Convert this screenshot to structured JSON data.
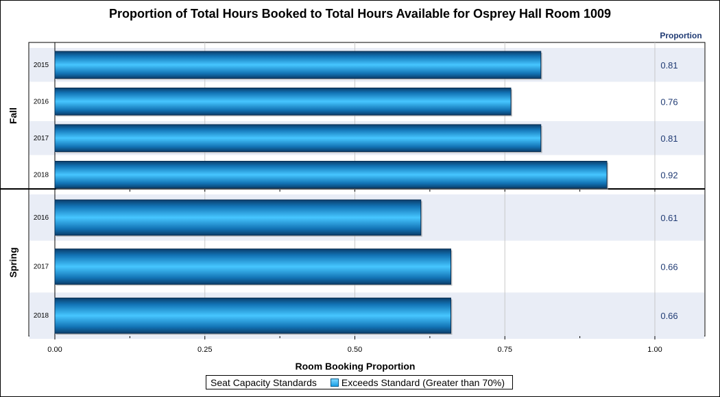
{
  "chart_data": {
    "type": "bar",
    "orientation": "horizontal",
    "title": "Proportion of Total Hours Booked to Total Hours Available for Osprey Hall Room 1009",
    "xlabel": "Room Booking Proportion",
    "value_column_header": "Proportion",
    "xlim": [
      0,
      1.125
    ],
    "x_ticks": [
      "0.00",
      "0.25",
      "0.50",
      "0.75",
      "1.00"
    ],
    "grid": true,
    "groups": [
      {
        "name": "Fall",
        "categories": [
          "2015",
          "2016",
          "2017",
          "2018"
        ],
        "values": [
          0.81,
          0.76,
          0.81,
          0.92
        ],
        "value_labels": [
          "0.81",
          "0.76",
          "0.81",
          "0.92"
        ]
      },
      {
        "name": "Spring",
        "categories": [
          "2016",
          "2017",
          "2018"
        ],
        "values": [
          0.61,
          0.66,
          0.66
        ],
        "value_labels": [
          "0.61",
          "0.66",
          "0.66"
        ]
      }
    ],
    "legend": {
      "title": "Seat Capacity Standards",
      "entries": [
        {
          "label": "Exceeds Standard (Greater than 70%)",
          "color": "#1aa0e6"
        }
      ],
      "placement": "bottom"
    },
    "colors": {
      "bar": "#1aa0e6",
      "band": "#e9edf6",
      "value_text": "#1f3a73"
    }
  }
}
